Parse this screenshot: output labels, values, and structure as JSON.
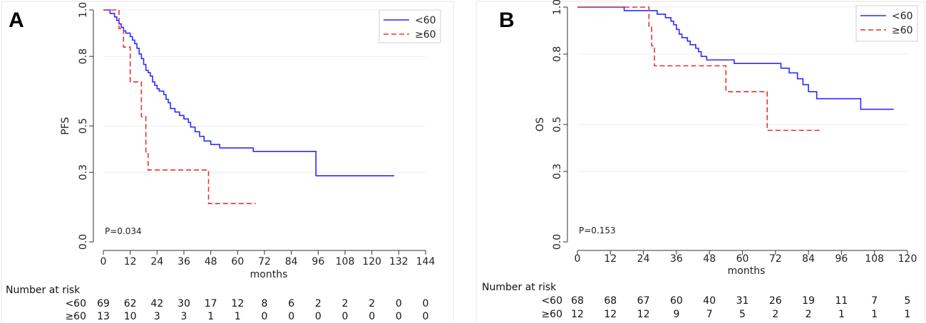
{
  "chart_data": [
    {
      "panel": "A",
      "type": "line",
      "subtype": "kaplan-meier",
      "ylabel": "PFS",
      "xlabel": "months",
      "xticks": [
        0,
        12,
        24,
        36,
        48,
        60,
        72,
        84,
        96,
        108,
        120,
        132,
        144
      ],
      "yticks": [
        0.0,
        0.3,
        0.5,
        0.8,
        1.0
      ],
      "ytick_labels": [
        "0.0",
        "0.3",
        "0.5",
        "0.8",
        "1.0"
      ],
      "xlim": [
        0,
        144
      ],
      "ylim": [
        0,
        1
      ],
      "pvalue": "P=0.034",
      "legend": [
        "<60",
        "≥60"
      ],
      "colors": [
        "#2b2bff",
        "#e8302e"
      ],
      "series": [
        {
          "name": "<60",
          "points": [
            [
              0,
              1.0
            ],
            [
              3,
              1.0
            ],
            [
              3,
              0.985
            ],
            [
              5,
              0.985
            ],
            [
              5,
              0.97
            ],
            [
              6,
              0.97
            ],
            [
              6,
              0.955
            ],
            [
              7,
              0.955
            ],
            [
              7,
              0.94
            ],
            [
              8,
              0.94
            ],
            [
              8,
              0.925
            ],
            [
              9,
              0.925
            ],
            [
              9,
              0.91
            ],
            [
              10,
              0.91
            ],
            [
              10,
              0.9
            ],
            [
              12,
              0.9
            ],
            [
              12,
              0.885
            ],
            [
              13,
              0.885
            ],
            [
              13,
              0.87
            ],
            [
              14,
              0.87
            ],
            [
              14,
              0.855
            ],
            [
              15,
              0.855
            ],
            [
              15,
              0.835
            ],
            [
              16,
              0.835
            ],
            [
              16,
              0.81
            ],
            [
              17,
              0.81
            ],
            [
              17,
              0.79
            ],
            [
              18,
              0.79
            ],
            [
              18,
              0.765
            ],
            [
              19,
              0.765
            ],
            [
              19,
              0.74
            ],
            [
              20,
              0.74
            ],
            [
              20,
              0.73
            ],
            [
              21,
              0.73
            ],
            [
              21,
              0.715
            ],
            [
              22,
              0.715
            ],
            [
              22,
              0.69
            ],
            [
              23,
              0.69
            ],
            [
              23,
              0.675
            ],
            [
              24,
              0.675
            ],
            [
              24,
              0.66
            ],
            [
              25,
              0.66
            ],
            [
              25,
              0.65
            ],
            [
              27,
              0.65
            ],
            [
              27,
              0.635
            ],
            [
              28,
              0.635
            ],
            [
              28,
              0.615
            ],
            [
              29,
              0.615
            ],
            [
              29,
              0.6
            ],
            [
              30,
              0.6
            ],
            [
              30,
              0.575
            ],
            [
              32,
              0.575
            ],
            [
              32,
              0.56
            ],
            [
              34,
              0.56
            ],
            [
              34,
              0.545
            ],
            [
              36,
              0.545
            ],
            [
              36,
              0.53
            ],
            [
              38,
              0.53
            ],
            [
              38,
              0.515
            ],
            [
              39,
              0.515
            ],
            [
              39,
              0.495
            ],
            [
              41,
              0.495
            ],
            [
              41,
              0.475
            ],
            [
              43,
              0.475
            ],
            [
              43,
              0.455
            ],
            [
              45,
              0.455
            ],
            [
              45,
              0.435
            ],
            [
              48,
              0.435
            ],
            [
              48,
              0.42
            ],
            [
              52,
              0.42
            ],
            [
              52,
              0.405
            ],
            [
              67,
              0.405
            ],
            [
              67,
              0.39
            ],
            [
              95,
              0.39
            ],
            [
              95,
              0.285
            ],
            [
              130,
              0.285
            ]
          ]
        },
        {
          "name": "≥60",
          "points": [
            [
              0,
              1.0
            ],
            [
              7,
              1.0
            ],
            [
              7,
              0.92
            ],
            [
              9,
              0.92
            ],
            [
              9,
              0.84
            ],
            [
              12,
              0.84
            ],
            [
              12,
              0.69
            ],
            [
              17,
              0.69
            ],
            [
              17,
              0.54
            ],
            [
              19,
              0.54
            ],
            [
              19,
              0.38
            ],
            [
              20,
              0.38
            ],
            [
              20,
              0.31
            ],
            [
              47,
              0.31
            ],
            [
              47,
              0.165
            ],
            [
              68,
              0.165
            ]
          ]
        }
      ],
      "risk_table": {
        "title": "Number at risk",
        "rows": [
          {
            "label": "<60",
            "values": [
              "69",
              "62",
              "42",
              "30",
              "17",
              "12",
              "8",
              "6",
              "2",
              "2",
              "2",
              "0",
              "0"
            ]
          },
          {
            "label": "≥60",
            "values": [
              "13",
              "10",
              "3",
              "3",
              "1",
              "1",
              "0",
              "0",
              "0",
              "0",
              "0",
              "0",
              "0"
            ]
          }
        ]
      }
    },
    {
      "panel": "B",
      "type": "line",
      "subtype": "kaplan-meier",
      "ylabel": "OS",
      "xlabel": "months",
      "xticks": [
        0,
        12,
        24,
        36,
        48,
        60,
        72,
        84,
        96,
        108,
        120
      ],
      "yticks": [
        0.0,
        0.3,
        0.5,
        0.8,
        1.0
      ],
      "ytick_labels": [
        "0.0",
        "0.3",
        "0.5",
        "0.8",
        "1.0"
      ],
      "xlim": [
        0,
        120
      ],
      "ylim": [
        0,
        1
      ],
      "pvalue": "P=0.153",
      "legend": [
        "<60",
        "≥60"
      ],
      "colors": [
        "#2b2bff",
        "#e8302e"
      ],
      "series": [
        {
          "name": "<60",
          "points": [
            [
              0,
              1.0
            ],
            [
              17,
              1.0
            ],
            [
              17,
              0.985
            ],
            [
              29,
              0.985
            ],
            [
              29,
              0.97
            ],
            [
              32,
              0.97
            ],
            [
              32,
              0.955
            ],
            [
              34,
              0.955
            ],
            [
              34,
              0.94
            ],
            [
              35,
              0.94
            ],
            [
              35,
              0.925
            ],
            [
              36,
              0.925
            ],
            [
              36,
              0.905
            ],
            [
              37,
              0.905
            ],
            [
              37,
              0.885
            ],
            [
              38,
              0.885
            ],
            [
              38,
              0.87
            ],
            [
              40,
              0.87
            ],
            [
              40,
              0.855
            ],
            [
              41,
              0.855
            ],
            [
              41,
              0.84
            ],
            [
              43,
              0.84
            ],
            [
              43,
              0.825
            ],
            [
              44,
              0.825
            ],
            [
              44,
              0.81
            ],
            [
              45,
              0.81
            ],
            [
              45,
              0.79
            ],
            [
              47,
              0.79
            ],
            [
              47,
              0.775
            ],
            [
              57,
              0.775
            ],
            [
              57,
              0.76
            ],
            [
              74,
              0.76
            ],
            [
              74,
              0.74
            ],
            [
              77,
              0.74
            ],
            [
              77,
              0.72
            ],
            [
              80,
              0.72
            ],
            [
              80,
              0.695
            ],
            [
              82,
              0.695
            ],
            [
              82,
              0.67
            ],
            [
              84,
              0.67
            ],
            [
              84,
              0.64
            ],
            [
              87,
              0.64
            ],
            [
              87,
              0.61
            ],
            [
              103,
              0.61
            ],
            [
              103,
              0.565
            ],
            [
              115,
              0.565
            ]
          ]
        },
        {
          "name": "≥60",
          "points": [
            [
              0,
              1.0
            ],
            [
              26,
              1.0
            ],
            [
              26,
              0.915
            ],
            [
              27,
              0.915
            ],
            [
              27,
              0.835
            ],
            [
              28,
              0.835
            ],
            [
              28,
              0.75
            ],
            [
              54,
              0.75
            ],
            [
              54,
              0.64
            ],
            [
              69,
              0.64
            ],
            [
              69,
              0.475
            ],
            [
              89,
              0.475
            ]
          ]
        }
      ],
      "risk_table": {
        "title": "Number at risk",
        "rows": [
          {
            "label": "<60",
            "values": [
              "68",
              "68",
              "67",
              "60",
              "40",
              "31",
              "26",
              "19",
              "11",
              "7",
              "5"
            ]
          },
          {
            "label": "≥60",
            "values": [
              "12",
              "12",
              "12",
              "9",
              "7",
              "5",
              "2",
              "2",
              "1",
              "1",
              "1"
            ]
          }
        ]
      }
    }
  ]
}
